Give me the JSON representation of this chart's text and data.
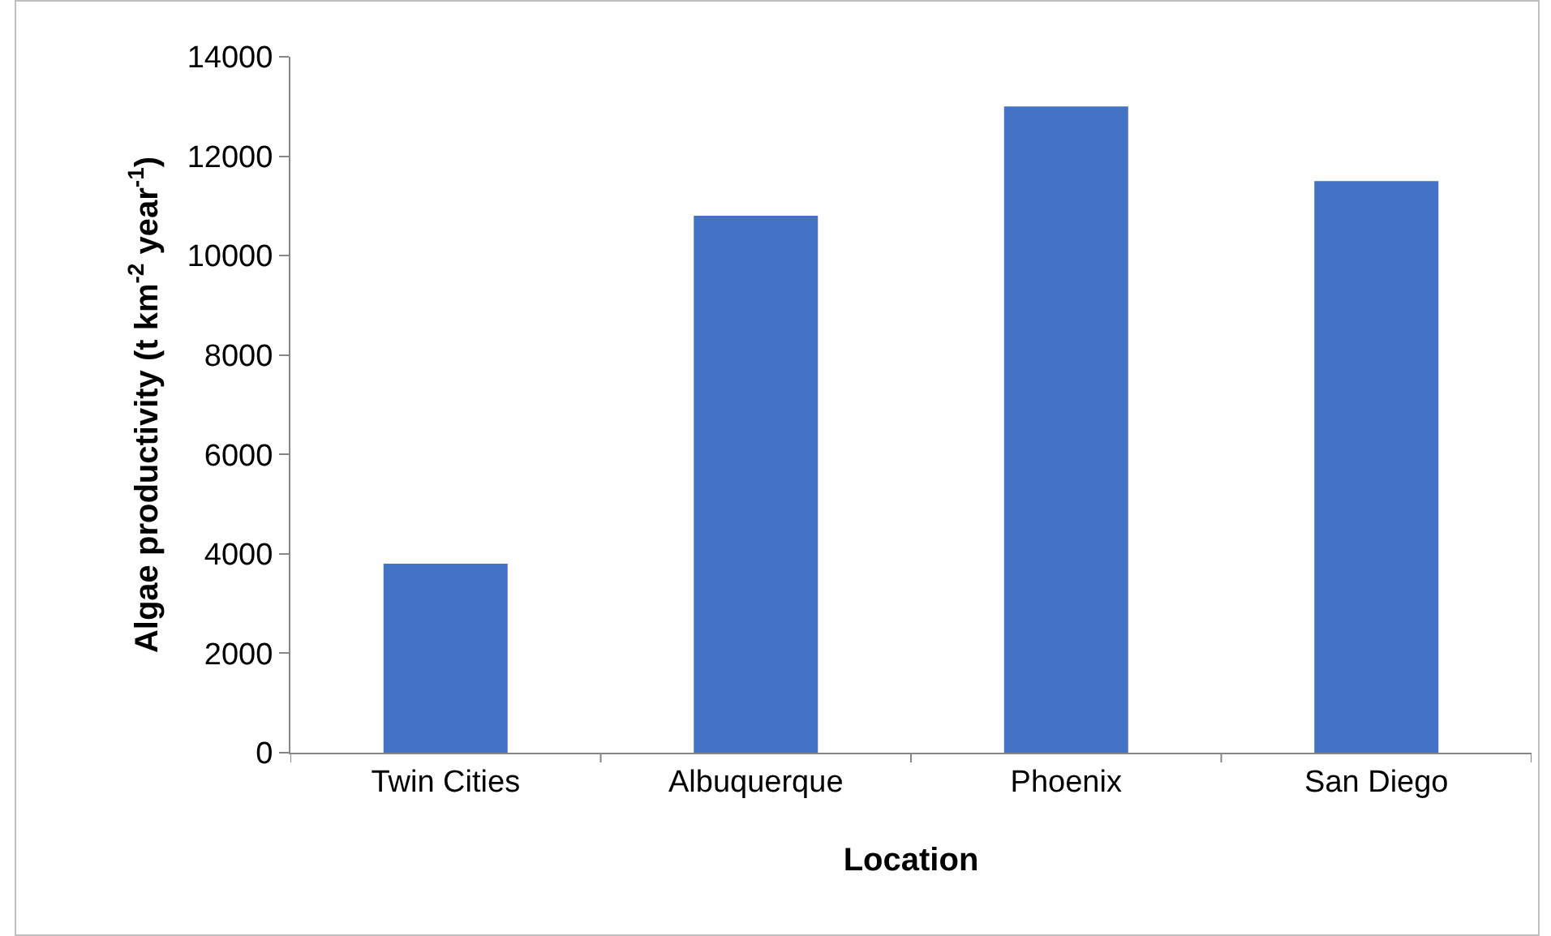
{
  "chart_data": {
    "type": "bar",
    "xlabel": "Location",
    "ylabel": "Algae productivity (t km$^{-2}$ year$^{-1}$)",
    "categories": [
      "Twin Cities",
      "Albuquerque",
      "Phoenix",
      "San Diego"
    ],
    "values": [
      3800,
      10800,
      13000,
      11500
    ],
    "color": "#4472c4",
    "ylim": [
      0,
      14000
    ],
    "yticks": [
      0,
      2000,
      4000,
      6000,
      8000,
      10000,
      12000,
      14000
    ],
    "grid": false
  }
}
